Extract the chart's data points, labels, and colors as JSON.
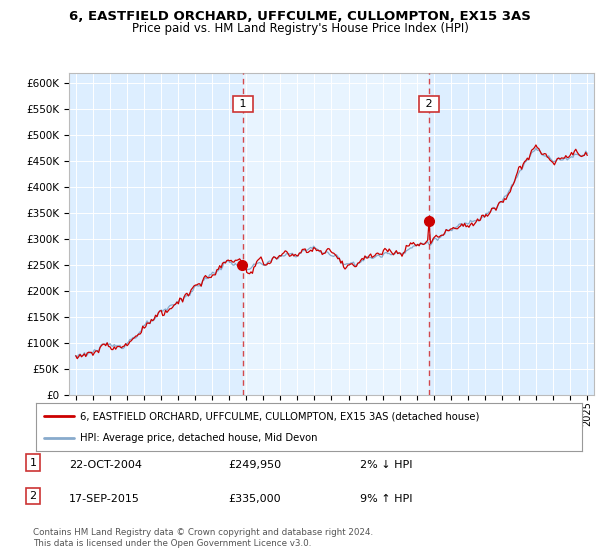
{
  "title": "6, EASTFIELD ORCHARD, UFFCULME, CULLOMPTON, EX15 3AS",
  "subtitle": "Price paid vs. HM Land Registry's House Price Index (HPI)",
  "legend_line1": "6, EASTFIELD ORCHARD, UFFCULME, CULLOMPTON, EX15 3AS (detached house)",
  "legend_line2": "HPI: Average price, detached house, Mid Devon",
  "annotation1_label": "1",
  "annotation1_date": "22-OCT-2004",
  "annotation1_price": "£249,950",
  "annotation1_hpi": "2% ↓ HPI",
  "annotation2_label": "2",
  "annotation2_date": "17-SEP-2015",
  "annotation2_price": "£335,000",
  "annotation2_hpi": "9% ↑ HPI",
  "footnote": "Contains HM Land Registry data © Crown copyright and database right 2024.\nThis data is licensed under the Open Government Licence v3.0.",
  "line_color_red": "#cc0000",
  "line_color_blue": "#88aacc",
  "fig_bg_color": "#f8f8f8",
  "plot_bg_color": "#ddeeff",
  "plot_bg_highlight": "#e8f4ff",
  "ylim": [
    0,
    620000
  ],
  "yticks": [
    0,
    50000,
    100000,
    150000,
    200000,
    250000,
    300000,
    350000,
    400000,
    450000,
    500000,
    550000,
    600000
  ],
  "sale1_year": 2004.8,
  "sale1_value": 249950,
  "sale2_year": 2015.72,
  "sale2_value": 335000,
  "xstart": 1995,
  "xend": 2025
}
